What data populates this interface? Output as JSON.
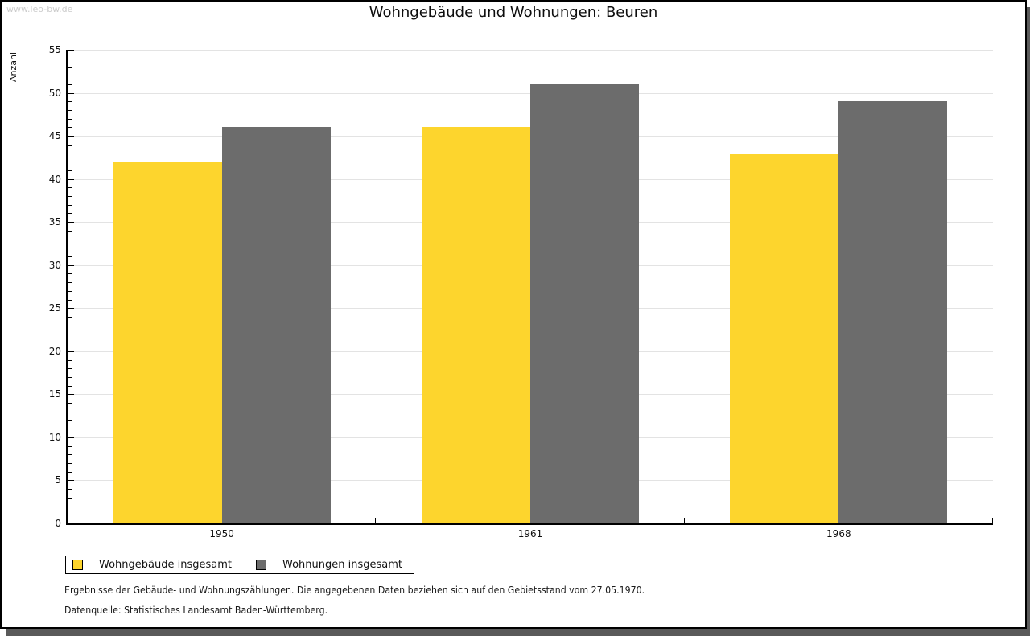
{
  "watermark": "www.leo-bw.de",
  "chart_data": {
    "type": "bar",
    "title": "Wohngebäude und Wohnungen: Beuren",
    "xlabel": "",
    "ylabel": "Anzahl",
    "categories": [
      "1950",
      "1961",
      "1968"
    ],
    "series": [
      {
        "name": "Wohngebäude insgesamt",
        "color": "#FDD52D",
        "values": [
          42,
          46,
          43
        ]
      },
      {
        "name": "Wohnungen insgesamt",
        "color": "#6C6C6C",
        "values": [
          46,
          51,
          49
        ]
      }
    ],
    "ylim": [
      0,
      55
    ],
    "ytick_major": 5,
    "ytick_minor": 1,
    "grid": true,
    "grid_color": "#e3e3e3",
    "axis_color": "#000000",
    "legend_position": "bottom-left"
  },
  "footer": {
    "line1": "Ergebnisse der Gebäude- und Wohnungszählungen. Die angegebenen Daten beziehen sich auf den Gebietsstand vom 27.05.1970.",
    "line2": "Datenquelle: Statistisches Landesamt Baden-Württemberg."
  }
}
